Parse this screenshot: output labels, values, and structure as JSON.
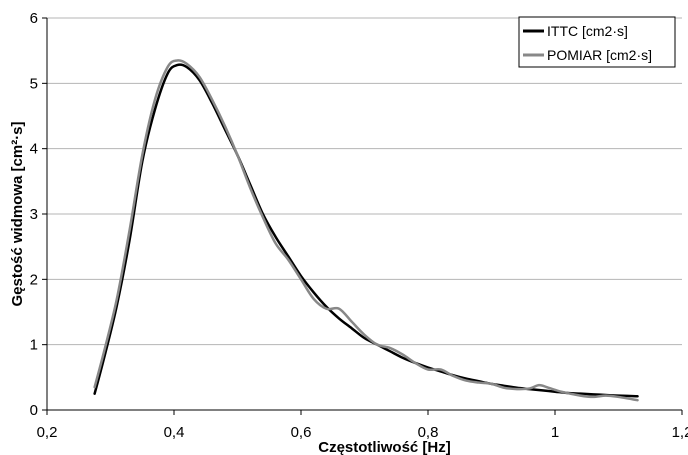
{
  "chart_data": {
    "type": "line",
    "title": "",
    "xlabel": "Częstotliwość [Hz]",
    "ylabel": "Gęstość widmowa [cm²·s]",
    "xlim": [
      0.2,
      1.2
    ],
    "ylim": [
      0,
      6
    ],
    "x_ticks": [
      {
        "value": 0.2,
        "label": "0,2"
      },
      {
        "value": 0.4,
        "label": "0,4"
      },
      {
        "value": 0.6,
        "label": "0,6"
      },
      {
        "value": 0.8,
        "label": "0,8"
      },
      {
        "value": 1.0,
        "label": "1"
      },
      {
        "value": 1.2,
        "label": "1,2"
      }
    ],
    "y_ticks": [
      {
        "value": 0,
        "label": "0"
      },
      {
        "value": 1,
        "label": "1"
      },
      {
        "value": 2,
        "label": "2"
      },
      {
        "value": 3,
        "label": "3"
      },
      {
        "value": 4,
        "label": "4"
      },
      {
        "value": 5,
        "label": "5"
      },
      {
        "value": 6,
        "label": "6"
      }
    ],
    "grid": {
      "horizontal": true,
      "vertical": false
    },
    "legend_position": "top-right",
    "series": [
      {
        "name": "ITTC [cm2·s]",
        "color": "#000000",
        "points": [
          [
            0.275,
            0.25
          ],
          [
            0.29,
            0.8
          ],
          [
            0.31,
            1.6
          ],
          [
            0.33,
            2.6
          ],
          [
            0.35,
            3.8
          ],
          [
            0.37,
            4.6
          ],
          [
            0.39,
            5.15
          ],
          [
            0.405,
            5.28
          ],
          [
            0.42,
            5.25
          ],
          [
            0.44,
            5.05
          ],
          [
            0.46,
            4.7
          ],
          [
            0.48,
            4.3
          ],
          [
            0.5,
            3.9
          ],
          [
            0.52,
            3.45
          ],
          [
            0.54,
            3.0
          ],
          [
            0.56,
            2.65
          ],
          [
            0.58,
            2.35
          ],
          [
            0.6,
            2.05
          ],
          [
            0.62,
            1.8
          ],
          [
            0.64,
            1.58
          ],
          [
            0.66,
            1.4
          ],
          [
            0.68,
            1.25
          ],
          [
            0.7,
            1.1
          ],
          [
            0.72,
            1.0
          ],
          [
            0.74,
            0.9
          ],
          [
            0.76,
            0.8
          ],
          [
            0.78,
            0.72
          ],
          [
            0.8,
            0.65
          ],
          [
            0.82,
            0.59
          ],
          [
            0.84,
            0.53
          ],
          [
            0.86,
            0.48
          ],
          [
            0.88,
            0.44
          ],
          [
            0.9,
            0.4
          ],
          [
            0.92,
            0.37
          ],
          [
            0.94,
            0.34
          ],
          [
            0.96,
            0.32
          ],
          [
            0.98,
            0.3
          ],
          [
            1.0,
            0.28
          ],
          [
            1.02,
            0.26
          ],
          [
            1.04,
            0.25
          ],
          [
            1.06,
            0.24
          ],
          [
            1.08,
            0.23
          ],
          [
            1.1,
            0.22
          ],
          [
            1.13,
            0.21
          ]
        ]
      },
      {
        "name": "POMIAR [cm2·s]",
        "color": "#888888",
        "points": [
          [
            0.275,
            0.35
          ],
          [
            0.29,
            0.9
          ],
          [
            0.31,
            1.7
          ],
          [
            0.33,
            2.75
          ],
          [
            0.35,
            3.9
          ],
          [
            0.37,
            4.75
          ],
          [
            0.39,
            5.25
          ],
          [
            0.405,
            5.35
          ],
          [
            0.42,
            5.3
          ],
          [
            0.44,
            5.1
          ],
          [
            0.46,
            4.75
          ],
          [
            0.48,
            4.35
          ],
          [
            0.5,
            3.9
          ],
          [
            0.52,
            3.4
          ],
          [
            0.54,
            2.95
          ],
          [
            0.56,
            2.55
          ],
          [
            0.58,
            2.3
          ],
          [
            0.6,
            2.0
          ],
          [
            0.62,
            1.7
          ],
          [
            0.64,
            1.55
          ],
          [
            0.66,
            1.55
          ],
          [
            0.68,
            1.35
          ],
          [
            0.7,
            1.15
          ],
          [
            0.72,
            1.0
          ],
          [
            0.74,
            0.95
          ],
          [
            0.76,
            0.85
          ],
          [
            0.78,
            0.72
          ],
          [
            0.8,
            0.62
          ],
          [
            0.82,
            0.62
          ],
          [
            0.84,
            0.52
          ],
          [
            0.86,
            0.45
          ],
          [
            0.88,
            0.42
          ],
          [
            0.9,
            0.4
          ],
          [
            0.92,
            0.34
          ],
          [
            0.94,
            0.32
          ],
          [
            0.96,
            0.33
          ],
          [
            0.975,
            0.38
          ],
          [
            0.99,
            0.34
          ],
          [
            1.01,
            0.28
          ],
          [
            1.04,
            0.22
          ],
          [
            1.06,
            0.2
          ],
          [
            1.08,
            0.22
          ],
          [
            1.1,
            0.2
          ],
          [
            1.13,
            0.15
          ]
        ]
      }
    ]
  }
}
